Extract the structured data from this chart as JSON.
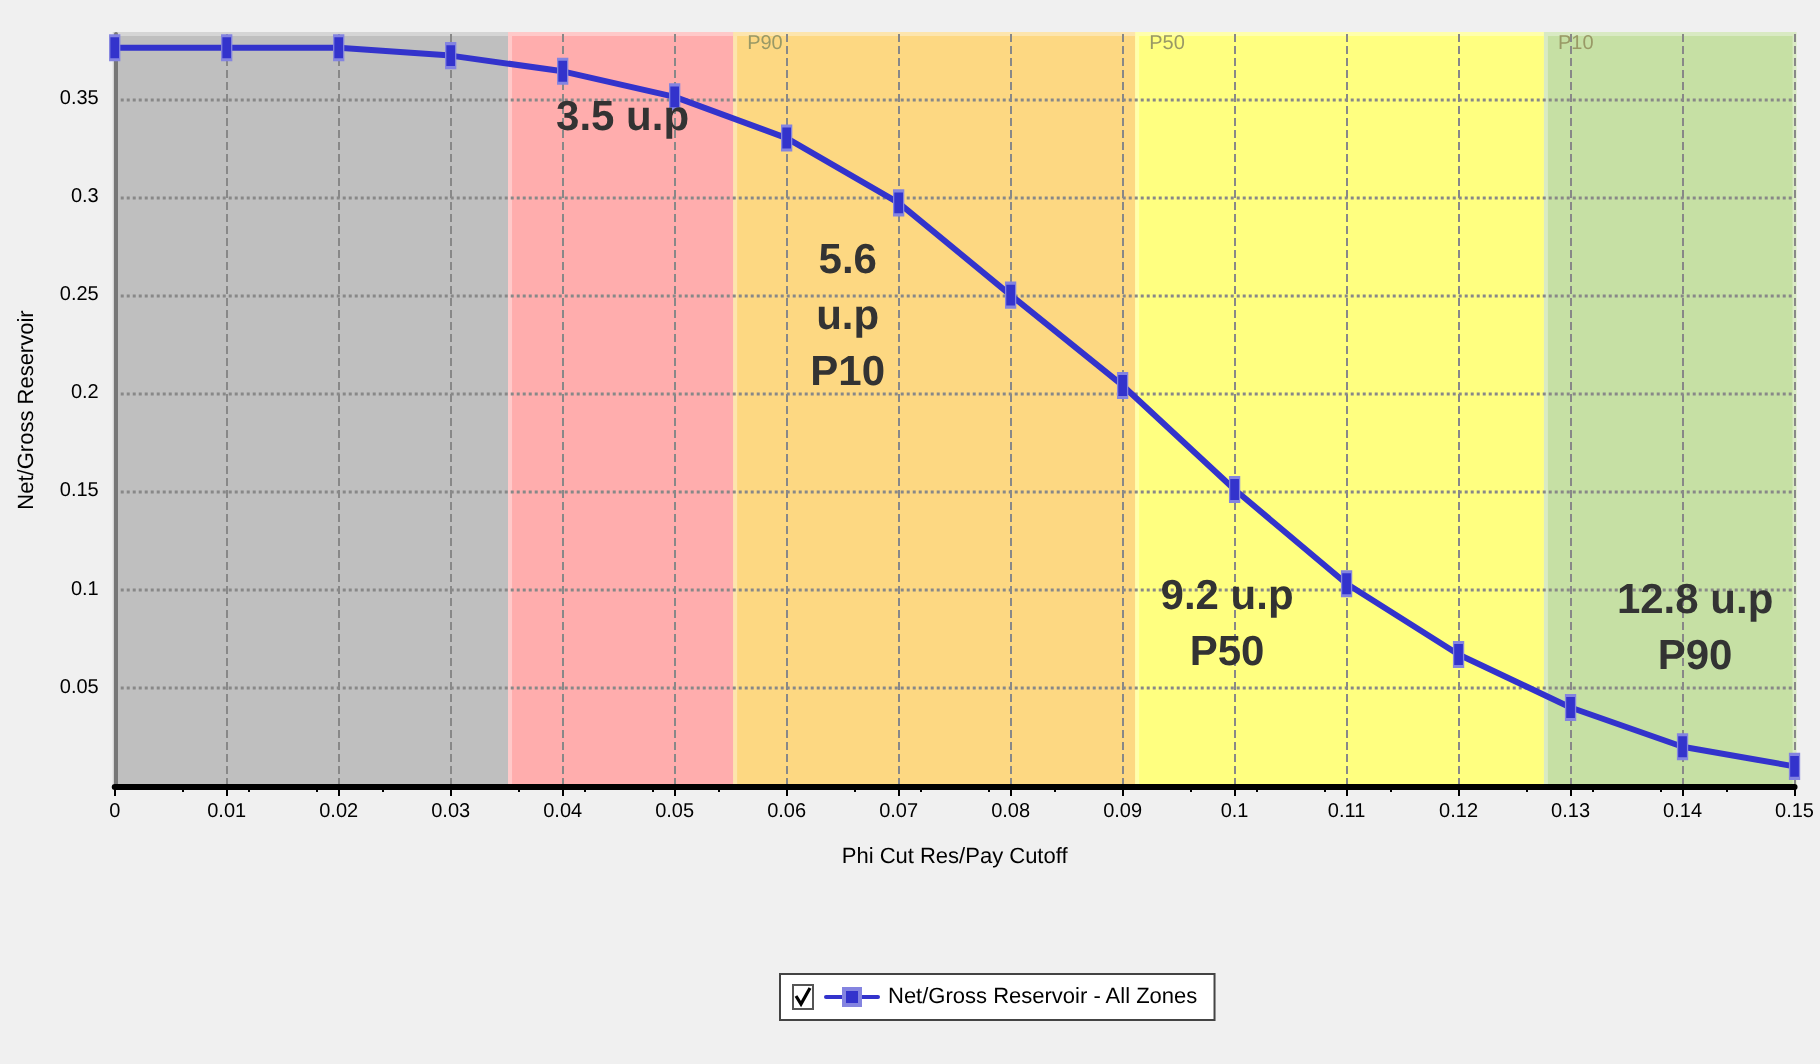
{
  "chart_data": {
    "type": "line",
    "xlabel": "Phi Cut Res/Pay Cutoff",
    "ylabel": "Net/Gross Reservoir",
    "x": [
      0,
      0.01,
      0.02,
      0.03,
      0.04,
      0.05,
      0.06,
      0.07,
      0.08,
      0.09,
      0.1,
      0.11,
      0.12,
      0.13,
      0.14,
      0.15
    ],
    "series": [
      {
        "name": "Net/Gross Reservoir - All Zones",
        "color": "#3333cc",
        "values": [
          0.376,
          0.376,
          0.376,
          0.372,
          0.364,
          0.351,
          0.33,
          0.297,
          0.25,
          0.204,
          0.151,
          0.103,
          0.067,
          0.04,
          0.02,
          0.01
        ]
      }
    ],
    "xlim": [
      0,
      0.15
    ],
    "xticks": [
      0,
      0.01,
      0.02,
      0.03,
      0.04,
      0.05,
      0.06,
      0.07,
      0.08,
      0.09,
      0.1,
      0.11,
      0.12,
      0.13,
      0.14,
      0.15
    ],
    "ylim": [
      0,
      0.383
    ],
    "yticks": [
      0.05,
      0.1,
      0.15,
      0.2,
      0.25,
      0.3,
      0.35
    ],
    "bands": [
      {
        "axis": "x",
        "from": 0,
        "to": 0.0353,
        "color": "#bfbfbf"
      },
      {
        "axis": "x",
        "from": 0.0353,
        "to": 0.0554,
        "color": "#ffadad"
      },
      {
        "axis": "x",
        "from": 0.0554,
        "to": 0.0913,
        "label": "P90",
        "color": "#fdd882"
      },
      {
        "axis": "x",
        "from": 0.0913,
        "to": 0.1278,
        "label": "P50",
        "color": "#ffff80"
      },
      {
        "axis": "x",
        "from": 0.1278,
        "to": 0.15,
        "label": "P10",
        "color": "#c6e0a4"
      }
    ],
    "annotations": [
      "3.5 u.p",
      "5.6\nu.p\nP10",
      "9.2 u.p\nP50",
      "12.8 u.p\nP90"
    ],
    "grid": true,
    "legend": "bottom",
    "marker": "square",
    "line_style": "solid"
  }
}
